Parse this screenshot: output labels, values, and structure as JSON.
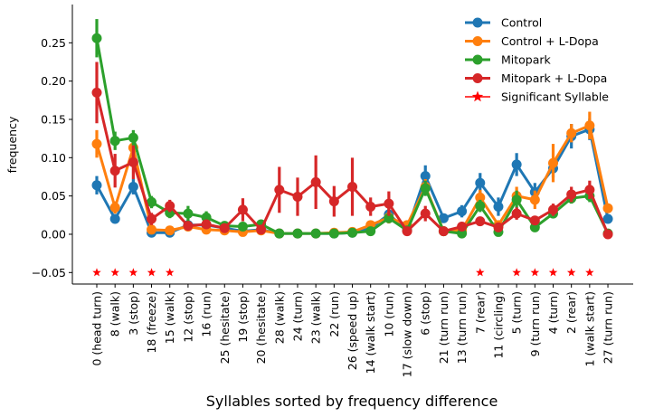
{
  "chart_data": {
    "type": "line",
    "xlabel": "Syllables sorted by frequency difference",
    "ylabel": "frequency",
    "ylim": [
      -0.065,
      0.3
    ],
    "yticks": [
      -0.05,
      0.0,
      0.05,
      0.1,
      0.15,
      0.2,
      0.25
    ],
    "ytick_labels": [
      "−0.05",
      "0.00",
      "0.05",
      "0.10",
      "0.15",
      "0.20",
      "0.25"
    ],
    "grid": false,
    "legend_position": "top-right",
    "categories": [
      "0 (head turn)",
      "8 (walk)",
      "3 (stop)",
      "18 (freeze)",
      "15 (walk)",
      "12 (stop)",
      "16 (run)",
      "25 (hesitate)",
      "19 (stop)",
      "20 (hesitate)",
      "28 (walk)",
      "24 (turn)",
      "23 (walk)",
      "22 (run)",
      "26 (speed up)",
      "14 (walk start)",
      "10 (run)",
      "17 (slow down)",
      "6 (stop)",
      "21 (turn run)",
      "13 (turn run)",
      "7 (rear)",
      "11 (circling)",
      "5 (turn)",
      "9 (turn run)",
      "4 (turn)",
      "2 (rear)",
      "1 (walk start)",
      "27 (turn run)"
    ],
    "series": [
      {
        "name": "Control",
        "color": "#1f77b4",
        "values": [
          0.064,
          0.02,
          0.062,
          0.002,
          0.002,
          0.012,
          0.012,
          0.008,
          0.004,
          0.006,
          0.001,
          0.001,
          0.001,
          0.001,
          0.002,
          0.008,
          0.026,
          0.005,
          0.076,
          0.021,
          0.03,
          0.067,
          0.036,
          0.091,
          0.055,
          0.086,
          0.128,
          0.137,
          0.02
        ],
        "err": [
          0.012,
          0.005,
          0.01,
          0.003,
          0.002,
          0.004,
          0.004,
          0.003,
          0.002,
          0.003,
          0.001,
          0.001,
          0.001,
          0.001,
          0.001,
          0.004,
          0.008,
          0.003,
          0.014,
          0.006,
          0.008,
          0.013,
          0.012,
          0.015,
          0.012,
          0.012,
          0.016,
          0.014,
          0.005
        ]
      },
      {
        "name": "Control + L-Dopa",
        "color": "#ff7f0e",
        "values": [
          0.118,
          0.035,
          0.113,
          0.006,
          0.005,
          0.01,
          0.006,
          0.005,
          0.003,
          0.005,
          0.001,
          0.001,
          0.001,
          0.002,
          0.003,
          0.012,
          0.022,
          0.012,
          0.062,
          0.004,
          0.005,
          0.048,
          0.012,
          0.05,
          0.045,
          0.093,
          0.132,
          0.142,
          0.034
        ],
        "err": [
          0.018,
          0.008,
          0.018,
          0.003,
          0.002,
          0.003,
          0.003,
          0.002,
          0.001,
          0.002,
          0.001,
          0.001,
          0.001,
          0.001,
          0.002,
          0.005,
          0.008,
          0.006,
          0.01,
          0.003,
          0.003,
          0.01,
          0.006,
          0.012,
          0.012,
          0.025,
          0.012,
          0.018,
          0.005
        ]
      },
      {
        "name": "Mitopark",
        "color": "#2ca02c",
        "values": [
          0.256,
          0.122,
          0.126,
          0.042,
          0.028,
          0.027,
          0.022,
          0.011,
          0.01,
          0.013,
          0.001,
          0.001,
          0.001,
          0.001,
          0.002,
          0.004,
          0.021,
          0.005,
          0.06,
          0.004,
          0.001,
          0.037,
          0.003,
          0.045,
          0.009,
          0.027,
          0.047,
          0.05,
          0.001
        ],
        "err": [
          0.025,
          0.012,
          0.01,
          0.008,
          0.007,
          0.01,
          0.008,
          0.006,
          0.005,
          0.006,
          0.001,
          0.001,
          0.001,
          0.001,
          0.001,
          0.003,
          0.006,
          0.004,
          0.01,
          0.003,
          0.002,
          0.008,
          0.003,
          0.012,
          0.004,
          0.005,
          0.007,
          0.008,
          0.001
        ]
      },
      {
        "name": "Mitopark + L-Dopa",
        "color": "#d62728",
        "values": [
          0.185,
          0.083,
          0.094,
          0.02,
          0.037,
          0.011,
          0.013,
          0.008,
          0.032,
          0.006,
          0.058,
          0.049,
          0.068,
          0.043,
          0.062,
          0.036,
          0.04,
          0.004,
          0.027,
          0.004,
          0.01,
          0.017,
          0.009,
          0.027,
          0.018,
          0.032,
          0.052,
          0.058,
          0.0
        ],
        "err": [
          0.04,
          0.022,
          0.022,
          0.008,
          0.008,
          0.005,
          0.006,
          0.004,
          0.015,
          0.004,
          0.03,
          0.025,
          0.035,
          0.02,
          0.038,
          0.012,
          0.016,
          0.003,
          0.01,
          0.003,
          0.005,
          0.005,
          0.005,
          0.008,
          0.006,
          0.008,
          0.01,
          0.012,
          0.001
        ]
      }
    ],
    "significance": {
      "name": "Significant Syllable",
      "color": "#ff0000",
      "y": -0.05,
      "indices": [
        0,
        1,
        2,
        3,
        4,
        21,
        23,
        24,
        25,
        26,
        27
      ]
    }
  }
}
